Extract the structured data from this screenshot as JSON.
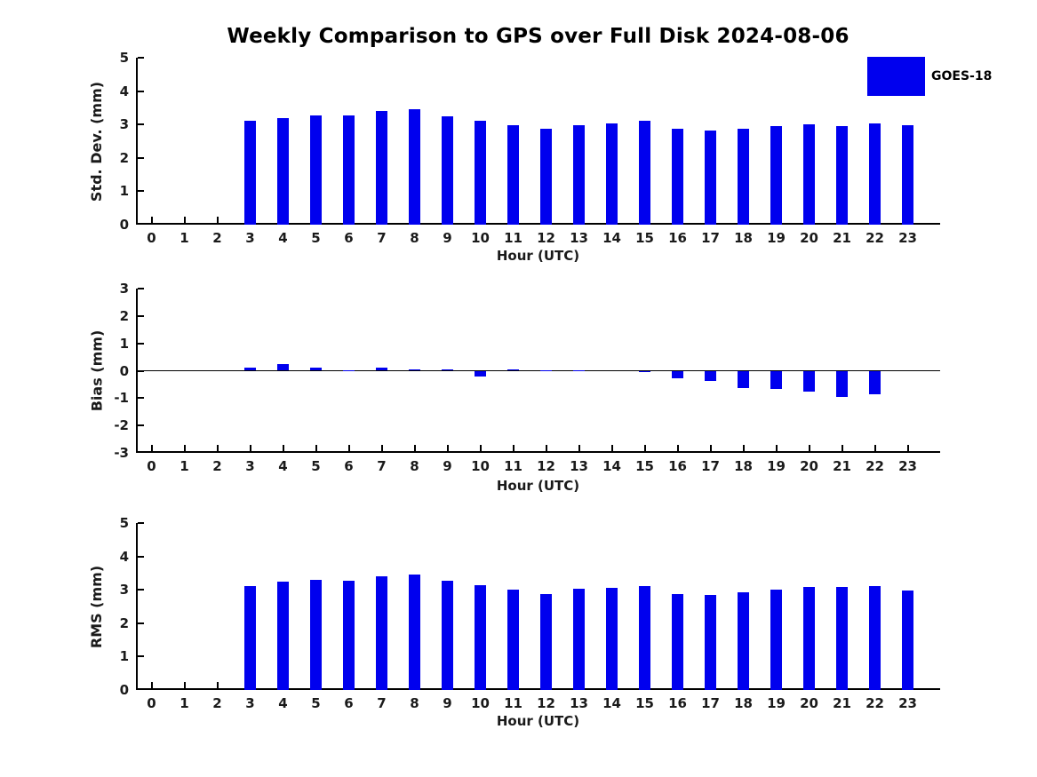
{
  "title": "Weekly Comparison to GPS over Full Disk 2024-08-06",
  "legend": {
    "label": "GOES-18",
    "color": "#0000ee",
    "position": "top-right"
  },
  "colors": {
    "bar": "#0000ee",
    "axis": "#000000",
    "tick_text": "#1a1a1a",
    "title_text": "#000000",
    "background": "#ffffff"
  },
  "chart_data": [
    {
      "type": "bar",
      "id": "stddev",
      "series_name": "GOES-18",
      "title": "",
      "xlabel": "Hour (UTC)",
      "ylabel": "Std. Dev. (mm)",
      "categories": [
        "0",
        "1",
        "2",
        "3",
        "4",
        "5",
        "6",
        "7",
        "8",
        "9",
        "10",
        "11",
        "12",
        "13",
        "14",
        "15",
        "16",
        "17",
        "18",
        "19",
        "20",
        "21",
        "22",
        "23"
      ],
      "values": [
        null,
        null,
        null,
        3.12,
        3.2,
        3.28,
        3.28,
        3.4,
        3.45,
        3.25,
        3.12,
        2.98,
        2.88,
        2.99,
        3.04,
        3.12,
        2.88,
        2.83,
        2.86,
        2.94,
        3.01,
        2.94,
        3.02,
        2.99
      ],
      "ylim": [
        0,
        5
      ],
      "yticks": [
        0,
        1,
        2,
        3,
        4,
        5
      ],
      "grid": false,
      "zero_line": false
    },
    {
      "type": "bar",
      "id": "bias",
      "series_name": "GOES-18",
      "title": "",
      "xlabel": "Hour (UTC)",
      "ylabel": "Bias (mm)",
      "categories": [
        "0",
        "1",
        "2",
        "3",
        "4",
        "5",
        "6",
        "7",
        "8",
        "9",
        "10",
        "11",
        "12",
        "13",
        "14",
        "15",
        "16",
        "17",
        "18",
        "19",
        "20",
        "21",
        "22",
        "23"
      ],
      "values": [
        null,
        null,
        null,
        0.1,
        0.25,
        0.12,
        0.02,
        0.1,
        0.04,
        0.05,
        -0.2,
        0.04,
        0.01,
        0.02,
        0.0,
        -0.05,
        -0.26,
        -0.36,
        -0.63,
        -0.67,
        -0.75,
        -0.97,
        -0.87,
        0.0
      ],
      "ylim": [
        -3,
        3
      ],
      "yticks": [
        -3,
        -2,
        -1,
        0,
        1,
        2,
        3
      ],
      "grid": false,
      "zero_line": true
    },
    {
      "type": "bar",
      "id": "rms",
      "series_name": "GOES-18",
      "title": "",
      "xlabel": "Hour (UTC)",
      "ylabel": "RMS (mm)",
      "categories": [
        "0",
        "1",
        "2",
        "3",
        "4",
        "5",
        "6",
        "7",
        "8",
        "9",
        "10",
        "11",
        "12",
        "13",
        "14",
        "15",
        "16",
        "17",
        "18",
        "19",
        "20",
        "21",
        "22",
        "23"
      ],
      "values": [
        null,
        null,
        null,
        3.12,
        3.24,
        3.3,
        3.28,
        3.41,
        3.47,
        3.26,
        3.13,
        3.0,
        2.87,
        3.02,
        3.05,
        3.12,
        2.88,
        2.84,
        2.93,
        3.01,
        3.09,
        3.09,
        3.12,
        2.99
      ],
      "ylim": [
        0,
        5
      ],
      "yticks": [
        0,
        1,
        2,
        3,
        4,
        5
      ],
      "grid": false,
      "zero_line": false
    }
  ]
}
